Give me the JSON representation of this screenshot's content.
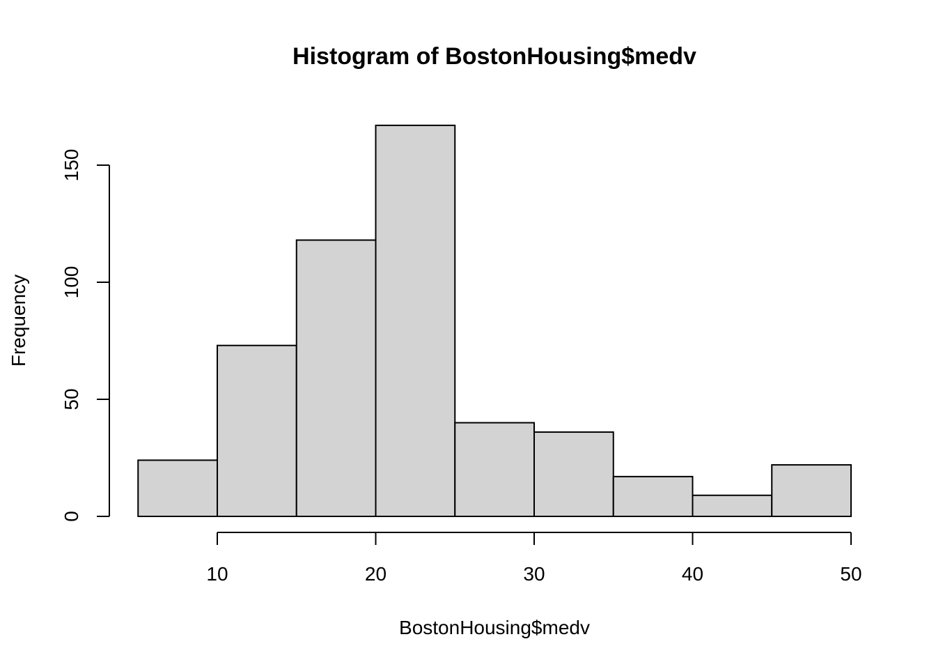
{
  "chart_data": {
    "type": "bar",
    "subtype": "histogram",
    "title": "Histogram of BostonHousing$medv",
    "xlabel": "BostonHousing$medv",
    "ylabel": "Frequency",
    "bins": [
      {
        "from": 5,
        "to": 10,
        "count": 24
      },
      {
        "from": 10,
        "to": 15,
        "count": 73
      },
      {
        "from": 15,
        "to": 20,
        "count": 118
      },
      {
        "from": 20,
        "to": 25,
        "count": 167
      },
      {
        "from": 25,
        "to": 30,
        "count": 40
      },
      {
        "from": 30,
        "to": 35,
        "count": 36
      },
      {
        "from": 35,
        "to": 40,
        "count": 17
      },
      {
        "from": 40,
        "to": 45,
        "count": 9
      },
      {
        "from": 45,
        "to": 50,
        "count": 22
      }
    ],
    "xticks": [
      10,
      20,
      30,
      40,
      50
    ],
    "yticks": [
      0,
      50,
      100,
      150
    ],
    "xlim": [
      5,
      50
    ],
    "ylim": [
      0,
      167
    ],
    "grid": false,
    "bar_color": "#d3d3d3",
    "edge_color": "#000000"
  }
}
